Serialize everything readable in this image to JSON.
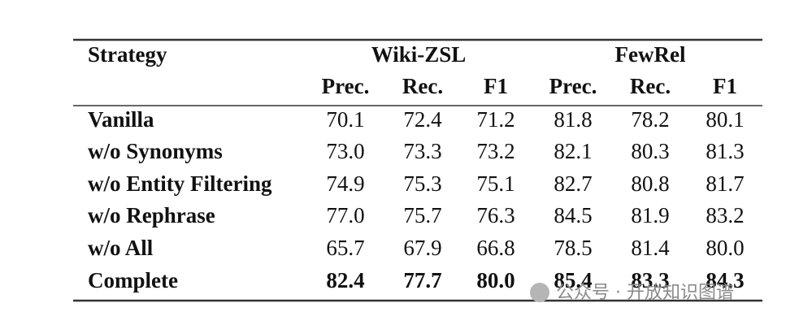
{
  "table": {
    "header": {
      "first": "Strategy",
      "groups": [
        "Wiki-ZSL",
        "FewRel"
      ],
      "columns": [
        "Prec.",
        "Rec.",
        "F1",
        "Prec.",
        "Rec.",
        "F1"
      ]
    },
    "rows": [
      [
        "Vanilla",
        "70.1",
        "72.4",
        "71.2",
        "81.8",
        "78.2",
        "80.1"
      ],
      [
        "w/o Synonyms",
        "73.0",
        "73.3",
        "73.2",
        "82.1",
        "80.3",
        "81.3"
      ],
      [
        "w/o Entity Filtering",
        "74.9",
        "75.3",
        "75.1",
        "82.7",
        "80.8",
        "81.7"
      ],
      [
        "w/o Rephrase",
        "77.0",
        "75.7",
        "76.3",
        "84.5",
        "81.9",
        "83.2"
      ],
      [
        "w/o All",
        "65.7",
        "67.9",
        "66.8",
        "78.5",
        "81.4",
        "80.0"
      ],
      [
        "Complete",
        "82.4",
        "77.7",
        "80.0",
        "85.4",
        "83.3",
        "84.3"
      ]
    ]
  },
  "watermark": "公众号 · 开放知识图谱"
}
